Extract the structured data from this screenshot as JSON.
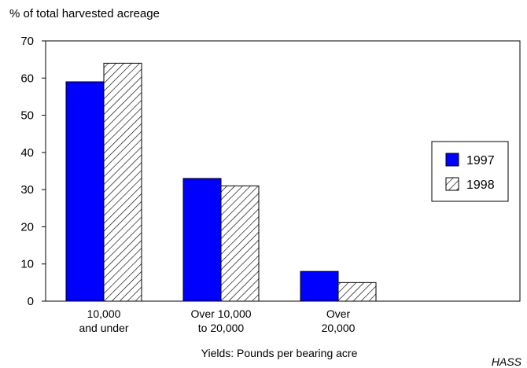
{
  "chart_data": {
    "type": "bar",
    "title": "",
    "ylabel": "% of total harvested acreage",
    "xlabel": "Yields: Pounds per bearing acre",
    "source": "HASS",
    "ylim": [
      0,
      70
    ],
    "yticks": [
      0,
      10,
      20,
      30,
      40,
      50,
      60,
      70
    ],
    "categories": [
      [
        "10,000",
        "and under"
      ],
      [
        "Over 10,000",
        "to 20,000"
      ],
      [
        "Over",
        "20,000"
      ]
    ],
    "series": [
      {
        "name": "1997",
        "values": [
          59,
          33,
          8
        ],
        "fill": "solid",
        "color": "#0000ff"
      },
      {
        "name": "1998",
        "values": [
          64,
          31,
          5
        ],
        "fill": "diagonal-hatch",
        "color": "#000000"
      }
    ],
    "legend_placement": "right",
    "grid": false
  }
}
